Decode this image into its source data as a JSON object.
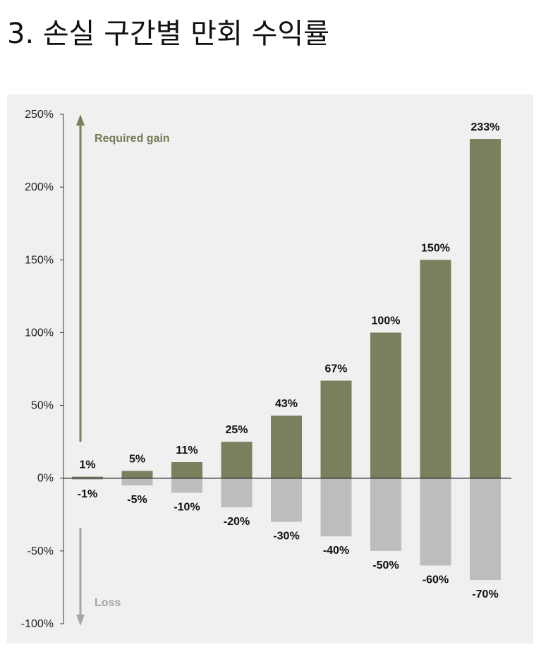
{
  "page": {
    "title": "3. 손실 구간별 만회 수익률"
  },
  "chart_data": {
    "type": "bar",
    "ylim": [
      -100,
      250
    ],
    "yticks": [
      250,
      200,
      150,
      100,
      50,
      0,
      -50,
      -100
    ],
    "ytick_labels": [
      "250%",
      "200%",
      "150%",
      "100%",
      "50%",
      "0%",
      "-50%",
      "-100%"
    ],
    "series": [
      {
        "values": [
          1,
          5,
          11,
          25,
          43,
          67,
          100,
          150,
          233
        ],
        "labels": [
          "1%",
          "5%",
          "11%",
          "25%",
          "43%",
          "67%",
          "100%",
          "150%",
          "233%"
        ],
        "color": "#7b7f5d"
      },
      {
        "values": [
          -1,
          -5,
          -10,
          -20,
          -30,
          -40,
          -50,
          -60,
          -70
        ],
        "labels": [
          "-1%",
          "-5%",
          "-10%",
          "-20%",
          "-30%",
          "-40%",
          "-50%",
          "-60%",
          "-70%"
        ],
        "color": "#bdbdbd"
      }
    ],
    "annotations": {
      "gain": "Required gain",
      "loss": "Loss"
    },
    "colors": {
      "gain_arrow": "#7b7f5d",
      "loss_arrow": "#a6a6a6",
      "axis": "#333333",
      "background": "#f0f0f0"
    },
    "grid": false,
    "legend": "none"
  }
}
